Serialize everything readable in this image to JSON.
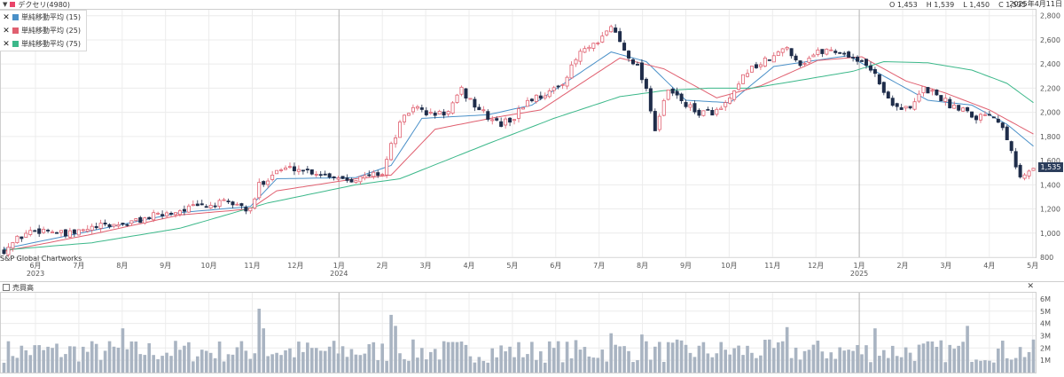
{
  "header": {
    "symbol": "デクセリ(4980)",
    "open": "O 1,453",
    "high": "H 1,539",
    "low": "L 1,450",
    "close": "C 1,535",
    "date": "2025年4月11日"
  },
  "legend": [
    {
      "label": "単純移動平均 (15)",
      "color": "#4a90c8"
    },
    {
      "label": "単純移動平均 (25)",
      "color": "#e06070"
    },
    {
      "label": "単純移動平均 (75)",
      "color": "#3cb88a"
    }
  ],
  "credit": "S&P Global Chartworks",
  "last_price_tag": "1,535",
  "volume_panel": {
    "title": "売買高",
    "close_symbol": "✕"
  },
  "chart_data": {
    "type": "candlestick",
    "price_axis": {
      "ticks": [
        "800",
        "1,000",
        "1,200",
        "1,400",
        "1,600",
        "1,800",
        "2,000",
        "2,200",
        "2,400",
        "2,600",
        "2,800"
      ],
      "ylim": [
        800,
        2820
      ]
    },
    "volume_axis": {
      "ticks": [
        "1M",
        "2M",
        "3M",
        "4M",
        "5M",
        "6M"
      ],
      "ylim": [
        0,
        6500000
      ]
    },
    "x_months": [
      {
        "label": "6月",
        "year": "2023"
      },
      {
        "label": "7月"
      },
      {
        "label": "8月"
      },
      {
        "label": "9月"
      },
      {
        "label": "10月"
      },
      {
        "label": "11月"
      },
      {
        "label": "12月"
      },
      {
        "label": "1月",
        "year": "2024"
      },
      {
        "label": "2月"
      },
      {
        "label": "3月"
      },
      {
        "label": "4月"
      },
      {
        "label": "5月"
      },
      {
        "label": "6月"
      },
      {
        "label": "7月"
      },
      {
        "label": "8月"
      },
      {
        "label": "9月"
      },
      {
        "label": "10月"
      },
      {
        "label": "11月"
      },
      {
        "label": "12月"
      },
      {
        "label": "1月",
        "year": "2025"
      },
      {
        "label": "2月"
      },
      {
        "label": "3月"
      },
      {
        "label": "4月"
      },
      {
        "label": "5月"
      }
    ],
    "price_path": [
      [
        0,
        860
      ],
      [
        3,
        950
      ],
      [
        6,
        1020
      ],
      [
        10,
        1030
      ],
      [
        14,
        980
      ],
      [
        17,
        1010
      ],
      [
        20,
        1040
      ],
      [
        23,
        1060
      ],
      [
        28,
        1080
      ],
      [
        31,
        1110
      ],
      [
        34,
        1140
      ],
      [
        38,
        1170
      ],
      [
        41,
        1200
      ],
      [
        44,
        1220
      ],
      [
        47,
        1230
      ],
      [
        50,
        1250
      ],
      [
        53,
        1240
      ],
      [
        56,
        1180
      ],
      [
        58,
        1400
      ],
      [
        62,
        1520
      ],
      [
        66,
        1540
      ],
      [
        70,
        1510
      ],
      [
        74,
        1480
      ],
      [
        78,
        1450
      ],
      [
        82,
        1460
      ],
      [
        84,
        1490
      ],
      [
        86,
        1500
      ],
      [
        88,
        1720
      ],
      [
        90,
        1900
      ],
      [
        93,
        2050
      ],
      [
        97,
        1980
      ],
      [
        101,
        2000
      ],
      [
        104,
        2180
      ],
      [
        107,
        2060
      ],
      [
        110,
        1960
      ],
      [
        113,
        1900
      ],
      [
        116,
        1960
      ],
      [
        119,
        2100
      ],
      [
        122,
        2140
      ],
      [
        125,
        2180
      ],
      [
        128,
        2300
      ],
      [
        131,
        2500
      ],
      [
        135,
        2560
      ],
      [
        138,
        2720
      ],
      [
        141,
        2520
      ],
      [
        144,
        2380
      ],
      [
        146,
        2200
      ],
      [
        148,
        1860
      ],
      [
        151,
        2180
      ],
      [
        154,
        2100
      ],
      [
        157,
        2000
      ],
      [
        160,
        2000
      ],
      [
        163,
        2020
      ],
      [
        166,
        2150
      ],
      [
        169,
        2350
      ],
      [
        172,
        2400
      ],
      [
        175,
        2460
      ],
      [
        178,
        2540
      ],
      [
        181,
        2400
      ],
      [
        184,
        2480
      ],
      [
        187,
        2520
      ],
      [
        190,
        2500
      ],
      [
        193,
        2460
      ],
      [
        196,
        2380
      ],
      [
        198,
        2340
      ],
      [
        200,
        2150
      ],
      [
        203,
        2050
      ],
      [
        206,
        2020
      ],
      [
        209,
        2200
      ],
      [
        212,
        2150
      ],
      [
        215,
        2060
      ],
      [
        218,
        2040
      ],
      [
        221,
        1960
      ],
      [
        224,
        2000
      ],
      [
        227,
        1900
      ],
      [
        229,
        1700
      ],
      [
        231,
        1450
      ],
      [
        234,
        1535
      ]
    ],
    "ma_series": [
      {
        "name": "単純移動平均 (15)",
        "anchors": [
          [
            0,
            870
          ],
          [
            20,
            1020
          ],
          [
            40,
            1170
          ],
          [
            56,
            1220
          ],
          [
            62,
            1450
          ],
          [
            80,
            1460
          ],
          [
            88,
            1560
          ],
          [
            95,
            1950
          ],
          [
            110,
            1980
          ],
          [
            120,
            2060
          ],
          [
            138,
            2500
          ],
          [
            146,
            2420
          ],
          [
            155,
            2100
          ],
          [
            165,
            2080
          ],
          [
            175,
            2380
          ],
          [
            192,
            2470
          ],
          [
            200,
            2300
          ],
          [
            210,
            2100
          ],
          [
            220,
            2060
          ],
          [
            228,
            1900
          ],
          [
            234,
            1720
          ]
        ]
      },
      {
        "name": "単純移動平均 (25)",
        "anchors": [
          [
            0,
            850
          ],
          [
            20,
            990
          ],
          [
            40,
            1150
          ],
          [
            56,
            1200
          ],
          [
            62,
            1350
          ],
          [
            80,
            1450
          ],
          [
            88,
            1480
          ],
          [
            98,
            1860
          ],
          [
            112,
            1960
          ],
          [
            122,
            2020
          ],
          [
            140,
            2450
          ],
          [
            150,
            2360
          ],
          [
            162,
            2120
          ],
          [
            172,
            2220
          ],
          [
            185,
            2430
          ],
          [
            195,
            2460
          ],
          [
            205,
            2260
          ],
          [
            214,
            2160
          ],
          [
            224,
            2020
          ],
          [
            234,
            1820
          ]
        ]
      },
      {
        "name": "単純移動平均 (75)",
        "anchors": [
          [
            0,
            860
          ],
          [
            20,
            920
          ],
          [
            40,
            1040
          ],
          [
            60,
            1250
          ],
          [
            80,
            1400
          ],
          [
            90,
            1450
          ],
          [
            110,
            1740
          ],
          [
            125,
            1950
          ],
          [
            140,
            2130
          ],
          [
            150,
            2180
          ],
          [
            160,
            2200
          ],
          [
            170,
            2200
          ],
          [
            180,
            2260
          ],
          [
            193,
            2340
          ],
          [
            200,
            2420
          ],
          [
            210,
            2410
          ],
          [
            220,
            2350
          ],
          [
            228,
            2240
          ],
          [
            234,
            2080
          ]
        ]
      }
    ],
    "volume_peaks": [
      [
        27,
        3.6
      ],
      [
        58,
        5.2
      ],
      [
        59,
        3.6
      ],
      [
        88,
        4.7
      ],
      [
        89,
        3.8
      ],
      [
        138,
        3.2
      ],
      [
        145,
        3.1
      ],
      [
        178,
        3.7
      ],
      [
        198,
        3.6
      ],
      [
        219,
        3.8
      ]
    ]
  }
}
